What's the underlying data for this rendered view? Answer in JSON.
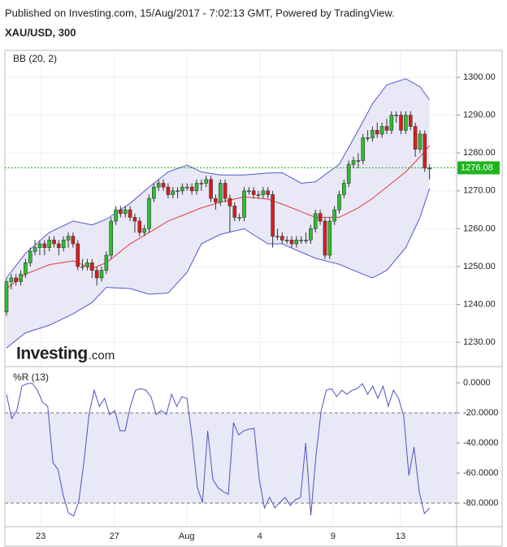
{
  "chart_data": {
    "type": "candlestick",
    "published": "Published on Investing.com, 15/Aug/2017 - 7:02:13 GMT, Powered by TradingView.",
    "symbol": "XAU/USD, 300",
    "indicator_label": "BB (20, 2)",
    "up_color": "#2cc12c",
    "down_color": "#e01b1b",
    "ylim": [
      1223.8,
      1307.1
    ],
    "yticks": [
      {
        "value": 1230,
        "label": "1230.00"
      },
      {
        "value": 1240,
        "label": "1240.00"
      },
      {
        "value": 1250,
        "label": "1250.00"
      },
      {
        "value": 1260,
        "label": "1260.00"
      },
      {
        "value": 1270,
        "label": "1270.00"
      },
      {
        "value": 1280,
        "label": "1280.00"
      },
      {
        "value": 1290,
        "label": "1290.00"
      },
      {
        "value": 1300,
        "label": "1300.00"
      }
    ],
    "xticks": [
      {
        "value": 7.2,
        "label": "23"
      },
      {
        "value": 22.7,
        "label": "27"
      },
      {
        "value": 37.9,
        "label": "Aug"
      },
      {
        "value": 53.3,
        "label": "4"
      },
      {
        "value": 68.7,
        "label": "9"
      },
      {
        "value": 82.9,
        "label": "13"
      }
    ],
    "grid": true,
    "last_price": 1276.08,
    "last_price_color": "#1fb41f",
    "candles": [
      [
        1238,
        1247,
        1237,
        1246
      ],
      [
        1246,
        1248,
        1244,
        1247
      ],
      [
        1247,
        1248,
        1245,
        1246
      ],
      [
        1246,
        1249,
        1245,
        1248
      ],
      [
        1248,
        1252,
        1247,
        1251
      ],
      [
        1251,
        1255,
        1250,
        1254
      ],
      [
        1254,
        1257,
        1253,
        1255
      ],
      [
        1255,
        1257,
        1253,
        1256
      ],
      [
        1256,
        1257,
        1253,
        1255
      ],
      [
        1255,
        1258,
        1254,
        1257
      ],
      [
        1257,
        1258,
        1255,
        1256
      ],
      [
        1256,
        1257,
        1253,
        1255
      ],
      [
        1255,
        1258,
        1254,
        1257
      ],
      [
        1257,
        1259,
        1255,
        1258
      ],
      [
        1258,
        1259,
        1255,
        1256
      ],
      [
        1256,
        1257,
        1249,
        1250
      ],
      [
        1250,
        1252,
        1249,
        1250
      ],
      [
        1250,
        1252,
        1249,
        1251
      ],
      [
        1251,
        1252,
        1247,
        1249
      ],
      [
        1249,
        1250,
        1245,
        1247
      ],
      [
        1247,
        1250,
        1246,
        1249
      ],
      [
        1249,
        1254,
        1248,
        1253
      ],
      [
        1253,
        1263,
        1252,
        1262
      ],
      [
        1262,
        1266,
        1261,
        1265
      ],
      [
        1265,
        1266,
        1263,
        1264
      ],
      [
        1264,
        1266,
        1263,
        1265
      ],
      [
        1265,
        1266,
        1262,
        1263
      ],
      [
        1263,
        1264,
        1259,
        1262
      ],
      [
        1262,
        1263,
        1258,
        1259
      ],
      [
        1259,
        1261,
        1258,
        1260
      ],
      [
        1260,
        1269,
        1259,
        1268
      ],
      [
        1268,
        1272,
        1267,
        1271
      ],
      [
        1271,
        1273,
        1270,
        1272
      ],
      [
        1272,
        1273,
        1270,
        1271
      ],
      [
        1271,
        1272,
        1268,
        1269
      ],
      [
        1269,
        1271,
        1268,
        1270
      ],
      [
        1270,
        1271,
        1268,
        1270
      ],
      [
        1270,
        1272,
        1269,
        1271
      ],
      [
        1271,
        1272,
        1270,
        1271
      ],
      [
        1271,
        1272,
        1269,
        1270
      ],
      [
        1270,
        1273,
        1269,
        1272
      ],
      [
        1272,
        1273,
        1270,
        1272
      ],
      [
        1272,
        1274,
        1271,
        1273
      ],
      [
        1273,
        1274,
        1267,
        1268
      ],
      [
        1268,
        1269,
        1265,
        1267
      ],
      [
        1267,
        1273,
        1266,
        1272
      ],
      [
        1272,
        1273,
        1267,
        1268
      ],
      [
        1268,
        1269,
        1259,
        1266
      ],
      [
        1266,
        1267,
        1262,
        1263
      ],
      [
        1263,
        1264,
        1262,
        1263
      ],
      [
        1263,
        1271,
        1262,
        1270
      ],
      [
        1270,
        1271,
        1269,
        1270
      ],
      [
        1270,
        1271,
        1268,
        1269
      ],
      [
        1269,
        1270,
        1268,
        1269
      ],
      [
        1269,
        1271,
        1268,
        1270
      ],
      [
        1270,
        1271,
        1268,
        1269
      ],
      [
        1269,
        1270,
        1255,
        1258
      ],
      [
        1258,
        1260,
        1257,
        1258
      ],
      [
        1258,
        1259,
        1256,
        1257
      ],
      [
        1257,
        1258,
        1256,
        1257
      ],
      [
        1257,
        1258,
        1255,
        1256
      ],
      [
        1256,
        1258,
        1255,
        1257
      ],
      [
        1257,
        1258,
        1256,
        1257
      ],
      [
        1257,
        1259,
        1256,
        1257
      ],
      [
        1257,
        1261,
        1256,
        1260
      ],
      [
        1260,
        1265,
        1259,
        1264
      ],
      [
        1264,
        1265,
        1261,
        1262
      ],
      [
        1262,
        1263,
        1252,
        1253
      ],
      [
        1253,
        1263,
        1252,
        1262
      ],
      [
        1262,
        1266,
        1261,
        1265
      ],
      [
        1265,
        1270,
        1264,
        1269
      ],
      [
        1269,
        1273,
        1268,
        1272
      ],
      [
        1272,
        1278,
        1271,
        1277
      ],
      [
        1277,
        1279,
        1276,
        1278
      ],
      [
        1278,
        1280,
        1276,
        1278
      ],
      [
        1278,
        1285,
        1277,
        1284
      ],
      [
        1284,
        1286,
        1283,
        1284
      ],
      [
        1284,
        1287,
        1283,
        1286
      ],
      [
        1286,
        1288,
        1284,
        1285
      ],
      [
        1285,
        1288,
        1284,
        1287
      ],
      [
        1287,
        1289,
        1285,
        1286
      ],
      [
        1286,
        1291,
        1285,
        1290
      ],
      [
        1290,
        1291,
        1288,
        1290
      ],
      [
        1290,
        1291,
        1285,
        1286
      ],
      [
        1286,
        1291,
        1285,
        1290
      ],
      [
        1290,
        1291,
        1286,
        1287
      ],
      [
        1287,
        1288,
        1279,
        1281
      ],
      [
        1281,
        1286,
        1280,
        1285
      ],
      [
        1285,
        1286,
        1275,
        1276
      ],
      [
        1276,
        1277,
        1273,
        1276
      ]
    ],
    "bands": {
      "band_color": "#5558cc",
      "middle_color": "#e23b3b",
      "fill": "#e8e8f6",
      "x": [
        0,
        4,
        9,
        14,
        18,
        21,
        26,
        30,
        34,
        38,
        41,
        45,
        50,
        55,
        58,
        62,
        65,
        70,
        74,
        77,
        80,
        84,
        87,
        89
      ],
      "upper": [
        1247,
        1253.5,
        1259,
        1262,
        1261,
        1262.5,
        1266.7,
        1271,
        1275,
        1276.8,
        1275,
        1274.2,
        1274.2,
        1274.7,
        1274.8,
        1272,
        1272.4,
        1277,
        1286,
        1293,
        1298,
        1299.6,
        1297.5,
        1294
      ],
      "middle": [
        1244.2,
        1248,
        1250.5,
        1251.5,
        1249.5,
        1251,
        1256,
        1259,
        1262,
        1264,
        1265.5,
        1267,
        1268.4,
        1267.8,
        1266.5,
        1264.5,
        1263,
        1263,
        1265.5,
        1268,
        1271,
        1275,
        1279,
        1282
      ],
      "lower": [
        1228.5,
        1232.5,
        1234.5,
        1237.5,
        1240.5,
        1244.5,
        1244.2,
        1242.7,
        1243,
        1248.5,
        1256,
        1258.5,
        1260,
        1256,
        1256,
        1253.8,
        1252.2,
        1250.6,
        1248.5,
        1247,
        1249,
        1255,
        1263,
        1270.6
      ]
    },
    "oscillator": {
      "label": "%R (13)",
      "color": "#4f52c4",
      "fill": "#e8e8f6",
      "levels": [
        -20,
        -80
      ],
      "ylim": [
        -95.7,
        10.3
      ],
      "yticks": [
        {
          "value": 0,
          "label": "0.0000"
        },
        {
          "value": -20,
          "label": "-20.0000"
        },
        {
          "value": -40,
          "label": "-40.0000"
        },
        {
          "value": -60,
          "label": "-60.0000"
        },
        {
          "value": -80,
          "label": "-80.0000"
        }
      ],
      "values": [
        -7.6,
        -23.8,
        -18.4,
        -2.2,
        -0.5,
        -0.3,
        -4.9,
        -13,
        -15.7,
        -53,
        -57.8,
        -75,
        -86.5,
        -88.6,
        -79,
        -53,
        -21,
        -4.9,
        -15.7,
        -10.3,
        -21,
        -18.4,
        -31.9,
        -31.9,
        -15.7,
        -4.9,
        -3.8,
        -4.9,
        -9.2,
        -21,
        -18.4,
        -21,
        -7.6,
        -15.7,
        -9.2,
        -10.3,
        -37.3,
        -69.7,
        -79.5,
        -31.9,
        -64.3,
        -69.7,
        -72.4,
        -74.1,
        -26.5,
        -34.6,
        -31.9,
        -30.8,
        -30.3,
        -64.3,
        -83.2,
        -76.2,
        -83.2,
        -79.5,
        -76.2,
        -81.6,
        -77.8,
        -76.2,
        -40,
        -88.1,
        -48.1,
        -18.4,
        -4.9,
        -3.8,
        -9.2,
        -4.9,
        -7.6,
        -4.9,
        -3.8,
        -0.5,
        -7.6,
        -2.2,
        -10.3,
        -2.2,
        -15.7,
        -4.9,
        -10.3,
        -22.2,
        -61.6,
        -42.7,
        -72.4,
        -87,
        -83.2
      ]
    },
    "logo": {
      "name": "Investing",
      "suffix": ".com"
    }
  }
}
